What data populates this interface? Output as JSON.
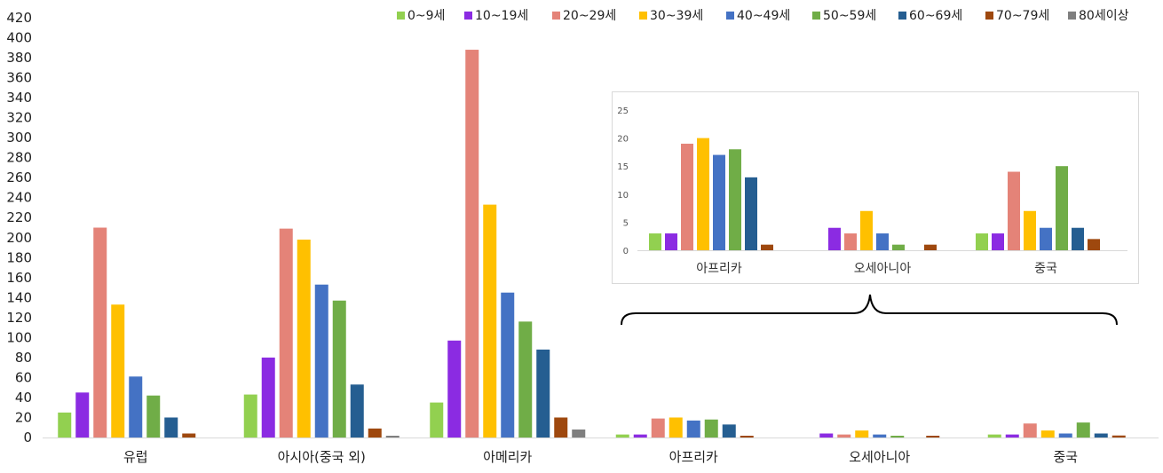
{
  "chart_data": [
    {
      "type": "bar",
      "title": "",
      "xlabel": "",
      "ylabel": "",
      "ylim": [
        0,
        420
      ],
      "y_ticks": [
        0,
        20,
        40,
        60,
        80,
        100,
        120,
        140,
        160,
        180,
        200,
        220,
        240,
        260,
        280,
        300,
        320,
        340,
        360,
        380,
        400,
        420
      ],
      "grid": false,
      "legend_position": "top-right",
      "categories": [
        "유럽",
        "아시아(중국 외)",
        "아메리카",
        "아프리카",
        "오세아니아",
        "중국"
      ],
      "series": [
        {
          "name": "0~9세",
          "color": "#92D050",
          "values": [
            25,
            43,
            35,
            3,
            0,
            3
          ]
        },
        {
          "name": "10~19세",
          "color": "#8B2BE2",
          "values": [
            45,
            80,
            97,
            3,
            4,
            3
          ]
        },
        {
          "name": "20~29세",
          "color": "#E48378",
          "values": [
            210,
            209,
            388,
            19,
            3,
            14
          ]
        },
        {
          "name": "30~39세",
          "color": "#FFC000",
          "values": [
            133,
            198,
            233,
            20,
            7,
            7
          ]
        },
        {
          "name": "40~49세",
          "color": "#4472C4",
          "values": [
            61,
            153,
            145,
            17,
            3,
            4
          ]
        },
        {
          "name": "50~59세",
          "color": "#70AD47",
          "values": [
            42,
            137,
            116,
            18,
            1,
            15
          ]
        },
        {
          "name": "60~69세",
          "color": "#255E91",
          "values": [
            20,
            53,
            88,
            13,
            0,
            4
          ]
        },
        {
          "name": "70~79세",
          "color": "#9E480E",
          "values": [
            4,
            9,
            20,
            1,
            1,
            2
          ]
        },
        {
          "name": "80세이상",
          "color": "#7F7F7F",
          "values": [
            0,
            1,
            8,
            0,
            0,
            0
          ]
        }
      ]
    },
    {
      "type": "bar",
      "title": "",
      "ylim": [
        0,
        25
      ],
      "y_ticks": [
        0,
        5,
        10,
        15,
        20,
        25
      ],
      "grid": false,
      "categories": [
        "아프리카",
        "오세아니아",
        "중국"
      ],
      "series": [
        {
          "name": "0~9세",
          "color": "#92D050",
          "values": [
            3,
            0,
            3
          ]
        },
        {
          "name": "10~19세",
          "color": "#8B2BE2",
          "values": [
            3,
            4,
            3
          ]
        },
        {
          "name": "20~29세",
          "color": "#E48378",
          "values": [
            19,
            3,
            14
          ]
        },
        {
          "name": "30~39세",
          "color": "#FFC000",
          "values": [
            20,
            7,
            7
          ]
        },
        {
          "name": "40~49세",
          "color": "#4472C4",
          "values": [
            17,
            3,
            4
          ]
        },
        {
          "name": "50~59세",
          "color": "#70AD47",
          "values": [
            18,
            1,
            15
          ]
        },
        {
          "name": "60~69세",
          "color": "#255E91",
          "values": [
            13,
            0,
            4
          ]
        },
        {
          "name": "70~79세",
          "color": "#9E480E",
          "values": [
            1,
            1,
            2
          ]
        },
        {
          "name": "80세이상",
          "color": "#7F7F7F",
          "values": [
            0,
            0,
            0
          ]
        }
      ]
    }
  ]
}
